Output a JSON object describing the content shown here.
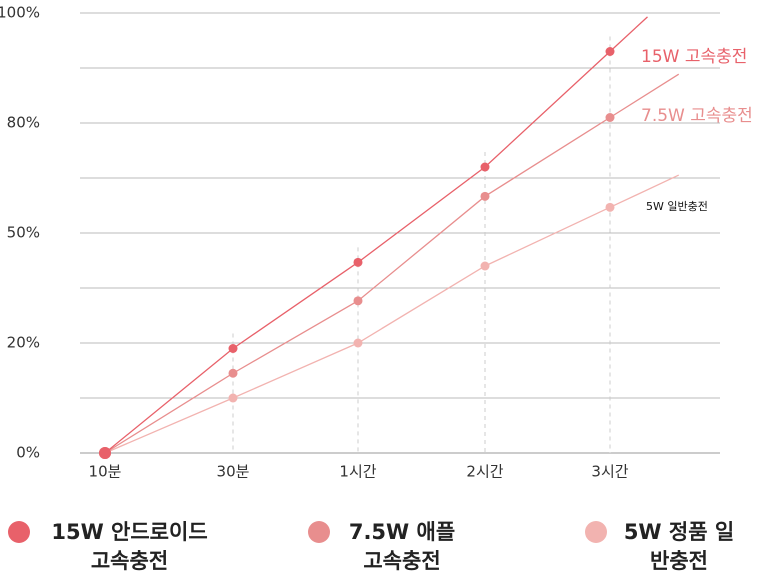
{
  "chart_data": {
    "type": "line",
    "categories": [
      "10분",
      "30분",
      "1시간",
      "2시간",
      "3시간"
    ],
    "ylim": [
      0,
      100
    ],
    "yticks": [
      {
        "value": 0,
        "label": "0%"
      },
      {
        "value": 20,
        "label": "20%"
      },
      {
        "value": 50,
        "label": "50%"
      },
      {
        "value": 80,
        "label": "80%"
      },
      {
        "value": 100,
        "label": "100%"
      }
    ],
    "grid": true,
    "series": [
      {
        "name": "15W 안드로이드 고속충전",
        "label": "15W 고속충전",
        "color": "#e8616a",
        "values": [
          0,
          19,
          42,
          68,
          93
        ]
      },
      {
        "name": "7.5W 애플 고속충전",
        "label": "7.5W 고속충전",
        "color": "#e88e8e",
        "values": [
          0,
          14.5,
          31.5,
          60,
          81
        ]
      },
      {
        "name": "5W 정품 일반충전",
        "label": "5W 일반충전",
        "color": "#f2b3b0",
        "values": [
          0,
          10,
          20,
          41,
          57
        ]
      }
    ]
  }
}
